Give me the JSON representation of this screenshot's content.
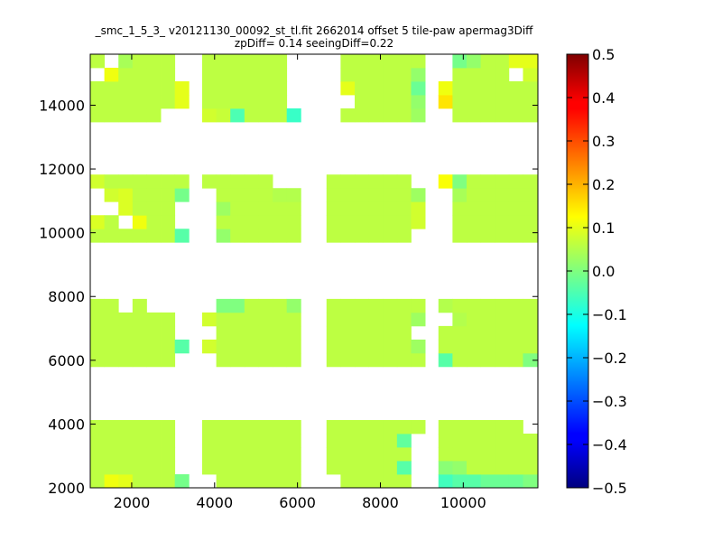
{
  "chart_data": [
    {
      "type": "heatmap",
      "title": "_smc_1_5_3_ v20121130_00092_st_tl.fit 2662014 offset 5 tile-paw apermag3Diff",
      "subtitle": "zpDiff= 0.14 seeingDiff=0.22",
      "xlabel": "",
      "ylabel": "",
      "xlim": [
        1000,
        11800
      ],
      "ylim": [
        2000,
        15600
      ],
      "x_ticks": [
        2000,
        4000,
        6000,
        8000,
        10000
      ],
      "y_ticks": [
        2000,
        4000,
        6000,
        8000,
        10000,
        12000,
        14000
      ],
      "grid": false,
      "colormap": "jet",
      "clim": [
        -0.5,
        0.5
      ],
      "cell_size": [
        340,
        425
      ],
      "colorbar": {
        "placement": "right",
        "ticks": [
          0.5,
          0.4,
          0.3,
          0.2,
          0.1,
          0.0,
          -0.1,
          -0.2,
          -0.3,
          -0.4,
          -0.5
        ],
        "tick_labels": [
          "0.5",
          "0.4",
          "0.3",
          "0.2",
          "0.1",
          "0.0",
          "−0.1",
          "−0.2",
          "−0.3",
          "−0.4",
          "−0.5"
        ]
      },
      "tile_columns": [
        {
          "x0": 1000,
          "x1": 3340
        },
        {
          "x0": 3700,
          "x1": 6040
        },
        {
          "x0": 6700,
          "x1": 9040
        },
        {
          "x0": 9400,
          "x1": 11740
        }
      ],
      "tile_rows": [
        {
          "y0": 2000,
          "y1": 4125
        },
        {
          "y0": 5800,
          "y1": 7925
        },
        {
          "y0": 9700,
          "y1": 11825
        },
        {
          "y0": 13475,
          "y1": 15600
        }
      ],
      "base_value": 0.06,
      "cell_overrides": [
        {
          "tc": 0,
          "tr": 0,
          "c": 1,
          "r": 0,
          "v": 0.11
        },
        {
          "tc": 0,
          "tr": 0,
          "c": 2,
          "r": 0,
          "v": 0.1
        },
        {
          "tc": 0,
          "tr": 0,
          "c": 6,
          "r": 0,
          "v": -0.01
        },
        {
          "tc": 0,
          "tr": 0,
          "c": 6,
          "r": 1,
          "v": null
        },
        {
          "tc": 0,
          "tr": 0,
          "c": 6,
          "r": 2,
          "v": null
        },
        {
          "tc": 0,
          "tr": 0,
          "c": 6,
          "r": 3,
          "v": null
        },
        {
          "tc": 0,
          "tr": 0,
          "c": 6,
          "r": 4,
          "v": null
        },
        {
          "tc": 1,
          "tr": 0,
          "c": 0,
          "r": 0,
          "v": null
        },
        {
          "tc": 2,
          "tr": 0,
          "c": 0,
          "r": 0,
          "v": null
        },
        {
          "tc": 2,
          "tr": 0,
          "c": 5,
          "r": 1,
          "v": -0.04
        },
        {
          "tc": 2,
          "tr": 0,
          "c": 5,
          "r": 3,
          "v": -0.03
        },
        {
          "tc": 2,
          "tr": 0,
          "c": 6,
          "r": 0,
          "v": null
        },
        {
          "tc": 2,
          "tr": 0,
          "c": 6,
          "r": 1,
          "v": null
        },
        {
          "tc": 2,
          "tr": 0,
          "c": 6,
          "r": 2,
          "v": null
        },
        {
          "tc": 2,
          "tr": 0,
          "c": 6,
          "r": 3,
          "v": null
        },
        {
          "tc": 3,
          "tr": 0,
          "c": 0,
          "r": 0,
          "v": -0.06
        },
        {
          "tc": 3,
          "tr": 0,
          "c": 1,
          "r": 0,
          "v": -0.04
        },
        {
          "tc": 3,
          "tr": 0,
          "c": 2,
          "r": 0,
          "v": -0.04
        },
        {
          "tc": 3,
          "tr": 0,
          "c": 3,
          "r": 0,
          "v": -0.02
        },
        {
          "tc": 3,
          "tr": 0,
          "c": 4,
          "r": 0,
          "v": -0.02
        },
        {
          "tc": 3,
          "tr": 0,
          "c": 5,
          "r": 0,
          "v": -0.02
        },
        {
          "tc": 3,
          "tr": 0,
          "c": 6,
          "r": 0,
          "v": 0.0
        },
        {
          "tc": 3,
          "tr": 0,
          "c": 0,
          "r": 1,
          "v": 0.01
        },
        {
          "tc": 3,
          "tr": 0,
          "c": 1,
          "r": 1,
          "v": 0.02
        },
        {
          "tc": 3,
          "tr": 0,
          "c": 6,
          "r": 4,
          "v": null
        },
        {
          "tc": 0,
          "tr": 1,
          "c": 2,
          "r": 4,
          "v": null
        },
        {
          "tc": 0,
          "tr": 1,
          "c": 4,
          "r": 4,
          "v": null
        },
        {
          "tc": 0,
          "tr": 1,
          "c": 5,
          "r": 4,
          "v": null
        },
        {
          "tc": 0,
          "tr": 1,
          "c": 6,
          "r": 4,
          "v": null
        },
        {
          "tc": 0,
          "tr": 1,
          "c": 6,
          "r": 3,
          "v": null
        },
        {
          "tc": 0,
          "tr": 1,
          "c": 6,
          "r": 2,
          "v": null
        },
        {
          "tc": 0,
          "tr": 1,
          "c": 6,
          "r": 1,
          "v": -0.04
        },
        {
          "tc": 0,
          "tr": 1,
          "c": 6,
          "r": 0,
          "v": null
        },
        {
          "tc": 1,
          "tr": 1,
          "c": 0,
          "r": 4,
          "v": null
        },
        {
          "tc": 1,
          "tr": 1,
          "c": 0,
          "r": 3,
          "v": 0.08
        },
        {
          "tc": 1,
          "tr": 1,
          "c": 0,
          "r": 2,
          "v": null
        },
        {
          "tc": 1,
          "tr": 1,
          "c": 0,
          "r": 1,
          "v": 0.08
        },
        {
          "tc": 1,
          "tr": 1,
          "c": 0,
          "r": 0,
          "v": null
        },
        {
          "tc": 1,
          "tr": 1,
          "c": 1,
          "r": 4,
          "v": 0.0
        },
        {
          "tc": 1,
          "tr": 1,
          "c": 2,
          "r": 4,
          "v": 0.0
        },
        {
          "tc": 1,
          "tr": 1,
          "c": 6,
          "r": 4,
          "v": 0.02
        },
        {
          "tc": 2,
          "tr": 1,
          "c": 6,
          "r": 2,
          "v": null
        },
        {
          "tc": 2,
          "tr": 1,
          "c": 6,
          "r": 1,
          "v": 0.03
        },
        {
          "tc": 2,
          "tr": 1,
          "c": 6,
          "r": 3,
          "v": 0.03
        },
        {
          "tc": 3,
          "tr": 1,
          "c": 0,
          "r": 3,
          "v": null
        },
        {
          "tc": 3,
          "tr": 1,
          "c": 0,
          "r": 4,
          "v": 0.05
        },
        {
          "tc": 3,
          "tr": 1,
          "c": 1,
          "r": 3,
          "v": 0.05
        },
        {
          "tc": 3,
          "tr": 1,
          "c": 0,
          "r": 0,
          "v": -0.04
        },
        {
          "tc": 3,
          "tr": 1,
          "c": 6,
          "r": 0,
          "v": 0.0
        },
        {
          "tc": 0,
          "tr": 2,
          "c": 0,
          "r": 4,
          "v": 0.08
        },
        {
          "tc": 0,
          "tr": 2,
          "c": 0,
          "r": 3,
          "v": null
        },
        {
          "tc": 0,
          "tr": 2,
          "c": 1,
          "r": 3,
          "v": 0.08
        },
        {
          "tc": 0,
          "tr": 2,
          "c": 0,
          "r": 2,
          "v": null
        },
        {
          "tc": 0,
          "tr": 2,
          "c": 1,
          "r": 2,
          "v": null
        },
        {
          "tc": 0,
          "tr": 2,
          "c": 0,
          "r": 1,
          "v": 0.09
        },
        {
          "tc": 0,
          "tr": 2,
          "c": 2,
          "r": 1,
          "v": null
        },
        {
          "tc": 0,
          "tr": 2,
          "c": 3,
          "r": 1,
          "v": 0.11
        },
        {
          "tc": 0,
          "tr": 2,
          "c": 2,
          "r": 2,
          "v": 0.09
        },
        {
          "tc": 0,
          "tr": 2,
          "c": 2,
          "r": 3,
          "v": 0.09
        },
        {
          "tc": 0,
          "tr": 2,
          "c": 6,
          "r": 3,
          "v": -0.01
        },
        {
          "tc": 0,
          "tr": 2,
          "c": 6,
          "r": 0,
          "v": -0.04
        },
        {
          "tc": 0,
          "tr": 2,
          "c": 6,
          "r": 1,
          "v": null
        },
        {
          "tc": 0,
          "tr": 2,
          "c": 6,
          "r": 2,
          "v": null
        },
        {
          "tc": 1,
          "tr": 2,
          "c": 0,
          "r": 4,
          "v": 0.06
        },
        {
          "tc": 1,
          "tr": 2,
          "c": 0,
          "r": 3,
          "v": null
        },
        {
          "tc": 1,
          "tr": 2,
          "c": 0,
          "r": 2,
          "v": null
        },
        {
          "tc": 1,
          "tr": 2,
          "c": 0,
          "r": 1,
          "v": null
        },
        {
          "tc": 1,
          "tr": 2,
          "c": 0,
          "r": 0,
          "v": null
        },
        {
          "tc": 1,
          "tr": 2,
          "c": 1,
          "r": 0,
          "v": 0.02
        },
        {
          "tc": 1,
          "tr": 2,
          "c": 1,
          "r": 2,
          "v": 0.03
        },
        {
          "tc": 1,
          "tr": 2,
          "c": 5,
          "r": 4,
          "v": null
        },
        {
          "tc": 1,
          "tr": 2,
          "c": 6,
          "r": 4,
          "v": null
        },
        {
          "tc": 1,
          "tr": 2,
          "c": 5,
          "r": 3,
          "v": 0.05
        },
        {
          "tc": 1,
          "tr": 2,
          "c": 6,
          "r": 3,
          "v": 0.05
        },
        {
          "tc": 2,
          "tr": 2,
          "c": 6,
          "r": 3,
          "v": 0.03
        },
        {
          "tc": 2,
          "tr": 2,
          "c": 6,
          "r": 4,
          "v": null
        },
        {
          "tc": 2,
          "tr": 2,
          "c": 6,
          "r": 2,
          "v": 0.08
        },
        {
          "tc": 2,
          "tr": 2,
          "c": 6,
          "r": 1,
          "v": 0.08
        },
        {
          "tc": 2,
          "tr": 2,
          "c": 6,
          "r": 0,
          "v": null
        },
        {
          "tc": 3,
          "tr": 2,
          "c": 0,
          "r": 4,
          "v": 0.12
        },
        {
          "tc": 3,
          "tr": 2,
          "c": 0,
          "r": 3,
          "v": null
        },
        {
          "tc": 3,
          "tr": 2,
          "c": 0,
          "r": 2,
          "v": null
        },
        {
          "tc": 3,
          "tr": 2,
          "c": 0,
          "r": 1,
          "v": null
        },
        {
          "tc": 3,
          "tr": 2,
          "c": 0,
          "r": 0,
          "v": null
        },
        {
          "tc": 3,
          "tr": 2,
          "c": 1,
          "r": 4,
          "v": 0.0
        },
        {
          "tc": 3,
          "tr": 2,
          "c": 1,
          "r": 3,
          "v": 0.04
        },
        {
          "tc": 0,
          "tr": 3,
          "c": 0,
          "r": 4,
          "v": 0.06
        },
        {
          "tc": 0,
          "tr": 3,
          "c": 1,
          "r": 4,
          "v": null
        },
        {
          "tc": 0,
          "tr": 3,
          "c": 0,
          "r": 3,
          "v": null
        },
        {
          "tc": 0,
          "tr": 3,
          "c": 1,
          "r": 3,
          "v": 0.11
        },
        {
          "tc": 0,
          "tr": 3,
          "c": 2,
          "r": 4,
          "v": 0.04
        },
        {
          "tc": 0,
          "tr": 3,
          "c": 5,
          "r": 0,
          "v": null
        },
        {
          "tc": 0,
          "tr": 3,
          "c": 6,
          "r": 0,
          "v": null
        },
        {
          "tc": 0,
          "tr": 3,
          "c": 6,
          "r": 1,
          "v": 0.1
        },
        {
          "tc": 0,
          "tr": 3,
          "c": 6,
          "r": 2,
          "v": 0.1
        },
        {
          "tc": 0,
          "tr": 3,
          "c": 6,
          "r": 3,
          "v": null
        },
        {
          "tc": 0,
          "tr": 3,
          "c": 6,
          "r": 4,
          "v": null
        },
        {
          "tc": 1,
          "tr": 3,
          "c": 0,
          "r": 0,
          "v": 0.08
        },
        {
          "tc": 1,
          "tr": 3,
          "c": 1,
          "r": 0,
          "v": 0.07
        },
        {
          "tc": 1,
          "tr": 3,
          "c": 2,
          "r": 0,
          "v": -0.05
        },
        {
          "tc": 1,
          "tr": 3,
          "c": 6,
          "r": 0,
          "v": -0.07
        },
        {
          "tc": 1,
          "tr": 3,
          "c": 6,
          "r": 1,
          "v": null
        },
        {
          "tc": 1,
          "tr": 3,
          "c": 6,
          "r": 2,
          "v": null
        },
        {
          "tc": 1,
          "tr": 3,
          "c": 6,
          "r": 3,
          "v": null
        },
        {
          "tc": 1,
          "tr": 3,
          "c": 6,
          "r": 4,
          "v": null
        },
        {
          "tc": 2,
          "tr": 3,
          "c": 0,
          "r": 0,
          "v": null
        },
        {
          "tc": 2,
          "tr": 3,
          "c": 0,
          "r": 1,
          "v": null
        },
        {
          "tc": 2,
          "tr": 3,
          "c": 0,
          "r": 2,
          "v": null
        },
        {
          "tc": 2,
          "tr": 3,
          "c": 0,
          "r": 3,
          "v": null
        },
        {
          "tc": 2,
          "tr": 3,
          "c": 0,
          "r": 4,
          "v": null
        },
        {
          "tc": 2,
          "tr": 3,
          "c": 1,
          "r": 1,
          "v": null
        },
        {
          "tc": 2,
          "tr": 3,
          "c": 1,
          "r": 2,
          "v": 0.1
        },
        {
          "tc": 2,
          "tr": 3,
          "c": 2,
          "r": 0,
          "v": 0.06
        },
        {
          "tc": 2,
          "tr": 3,
          "c": 6,
          "r": 0,
          "v": 0.03
        },
        {
          "tc": 2,
          "tr": 3,
          "c": 6,
          "r": 1,
          "v": 0.02
        },
        {
          "tc": 2,
          "tr": 3,
          "c": 6,
          "r": 2,
          "v": -0.02
        },
        {
          "tc": 2,
          "tr": 3,
          "c": 6,
          "r": 3,
          "v": 0.02
        },
        {
          "tc": 3,
          "tr": 3,
          "c": 0,
          "r": 0,
          "v": null
        },
        {
          "tc": 3,
          "tr": 3,
          "c": 0,
          "r": 1,
          "v": 0.15
        },
        {
          "tc": 3,
          "tr": 3,
          "c": 0,
          "r": 2,
          "v": 0.11
        },
        {
          "tc": 3,
          "tr": 3,
          "c": 0,
          "r": 3,
          "v": null
        },
        {
          "tc": 3,
          "tr": 3,
          "c": 0,
          "r": 4,
          "v": null
        },
        {
          "tc": 3,
          "tr": 3,
          "c": 1,
          "r": 4,
          "v": -0.01
        },
        {
          "tc": 3,
          "tr": 3,
          "c": 2,
          "r": 4,
          "v": 0.02
        },
        {
          "tc": 3,
          "tr": 3,
          "c": 5,
          "r": 4,
          "v": 0.1
        },
        {
          "tc": 3,
          "tr": 3,
          "c": 6,
          "r": 4,
          "v": 0.1
        },
        {
          "tc": 3,
          "tr": 3,
          "c": 5,
          "r": 3,
          "v": null
        },
        {
          "tc": 3,
          "tr": 3,
          "c": 6,
          "r": 3,
          "v": 0.08
        }
      ]
    }
  ]
}
